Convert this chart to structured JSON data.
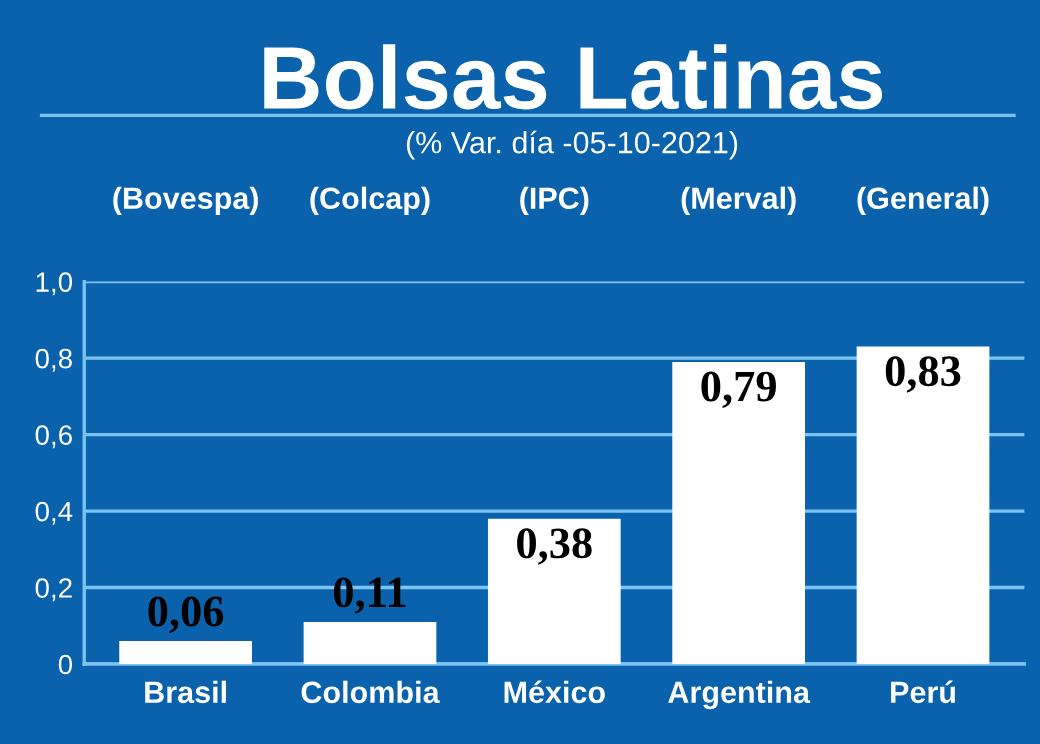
{
  "chart_data": {
    "type": "bar",
    "title": "Bolsas Latinas",
    "subtitle": "(% Var. día -05-10-2021)",
    "annotations": [
      "(Bovespa)",
      "(Colcap)",
      "(IPC)",
      "(Merval)",
      "(General)"
    ],
    "categories": [
      "Brasil",
      "Colombia",
      "México",
      "Argentina",
      "Perú"
    ],
    "values": [
      0.06,
      0.11,
      0.38,
      0.79,
      0.83
    ],
    "value_labels": [
      "0,06",
      "0,11",
      "0,38",
      "0,79",
      "0,83"
    ],
    "color": "#ffffff",
    "ylim": [
      0,
      1.0
    ],
    "yticks": [
      0,
      {
        "value": 0.2,
        "label": "0,2"
      },
      {
        "value": 0.4,
        "label": "0,4"
      },
      {
        "value": 0.6,
        "label": "0,6"
      },
      {
        "value": 0.8,
        "label": "0,8"
      },
      {
        "value": 1.0,
        "label": "1,0"
      }
    ],
    "grid": "y",
    "legend": false
  }
}
